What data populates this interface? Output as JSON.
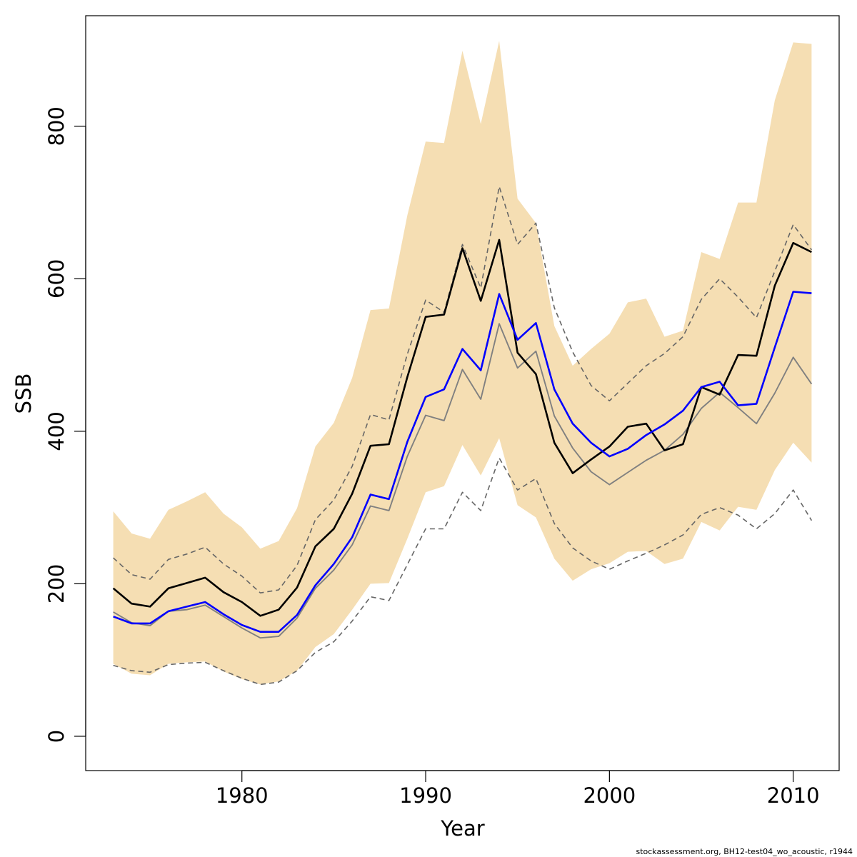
{
  "chart_data": {
    "type": "line",
    "xlabel": "Year",
    "ylabel": "SSB",
    "xlim": [
      1971.5,
      2012.5
    ],
    "ylim": [
      -45,
      945
    ],
    "x_ticks": [
      1980,
      1990,
      2000,
      2010
    ],
    "y_ticks": [
      0,
      200,
      400,
      600,
      800
    ],
    "grid": false,
    "legend": "none",
    "footnote": "stockassessment.org, BH12-test04_wo_acoustic, r1944",
    "colors": {
      "band": "#f5deb3",
      "black_line": "#000000",
      "blue_line": "#0000ff",
      "grey_line": "#808080",
      "dashed_line": "#666666"
    },
    "years": [
      1973,
      1974,
      1975,
      1976,
      1977,
      1978,
      1979,
      1980,
      1981,
      1982,
      1983,
      1984,
      1985,
      1986,
      1987,
      1988,
      1989,
      1990,
      1991,
      1992,
      1993,
      1994,
      1995,
      1996,
      1997,
      1998,
      1999,
      2000,
      2001,
      2002,
      2003,
      2004,
      2005,
      2006,
      2007,
      2008,
      2009,
      2010,
      2011
    ],
    "band": {
      "upper": [
        295,
        266,
        259,
        297,
        308,
        320,
        292,
        274,
        246,
        256,
        299,
        380,
        411,
        470,
        559,
        561,
        683,
        780,
        778,
        899,
        803,
        912,
        705,
        673,
        538,
        486,
        508,
        528,
        569,
        574,
        524,
        532,
        635,
        626,
        700,
        700,
        834,
        910,
        908
      ],
      "lower": [
        95,
        82,
        80,
        95,
        97,
        98,
        85,
        75,
        68,
        72,
        86,
        117,
        134,
        166,
        200,
        201,
        259,
        320,
        328,
        382,
        342,
        391,
        303,
        287,
        233,
        204,
        219,
        227,
        242,
        243,
        226,
        233,
        281,
        270,
        301,
        297,
        349,
        385,
        359
      ]
    },
    "series": [
      {
        "style": "solid",
        "color": "black_line",
        "values": [
          194,
          174,
          170,
          194,
          201,
          208,
          189,
          176,
          158,
          166,
          195,
          249,
          272,
          318,
          381,
          383,
          471,
          550,
          553,
          640,
          571,
          651,
          503,
          475,
          385,
          345,
          363,
          380,
          406,
          410,
          375,
          383,
          458,
          448,
          500,
          499,
          591,
          647,
          635
        ]
      },
      {
        "style": "solid",
        "color": "blue_line",
        "values": [
          157,
          148,
          148,
          164,
          170,
          176,
          160,
          146,
          137,
          137,
          159,
          198,
          226,
          261,
          317,
          311,
          386,
          445,
          455,
          508,
          480,
          580,
          520,
          542,
          455,
          410,
          385,
          367,
          377,
          395,
          409,
          427,
          458,
          465,
          434,
          436,
          510,
          583,
          581
        ]
      },
      {
        "style": "solid",
        "color": "grey_line",
        "values": [
          163,
          149,
          145,
          164,
          166,
          172,
          157,
          142,
          129,
          131,
          155,
          194,
          218,
          251,
          302,
          296,
          367,
          421,
          414,
          481,
          442,
          541,
          483,
          505,
          420,
          378,
          347,
          330,
          346,
          362,
          375,
          396,
          430,
          451,
          431,
          410,
          450,
          497,
          462
        ]
      },
      {
        "style": "dashed",
        "color": "dashed_line",
        "values": [
          234,
          212,
          206,
          232,
          239,
          248,
          226,
          210,
          188,
          192,
          224,
          284,
          310,
          354,
          422,
          415,
          501,
          572,
          556,
          645,
          588,
          721,
          645,
          673,
          562,
          504,
          460,
          440,
          463,
          486,
          502,
          524,
          573,
          600,
          576,
          549,
          610,
          671,
          638
        ]
      },
      {
        "style": "dashed",
        "color": "dashed_line",
        "values": [
          93,
          86,
          84,
          94,
          96,
          97,
          86,
          76,
          68,
          71,
          86,
          110,
          124,
          151,
          183,
          178,
          225,
          272,
          272,
          320,
          296,
          365,
          323,
          338,
          279,
          247,
          230,
          219,
          230,
          240,
          251,
          264,
          291,
          300,
          290,
          272,
          292,
          323,
          283
        ]
      }
    ]
  }
}
